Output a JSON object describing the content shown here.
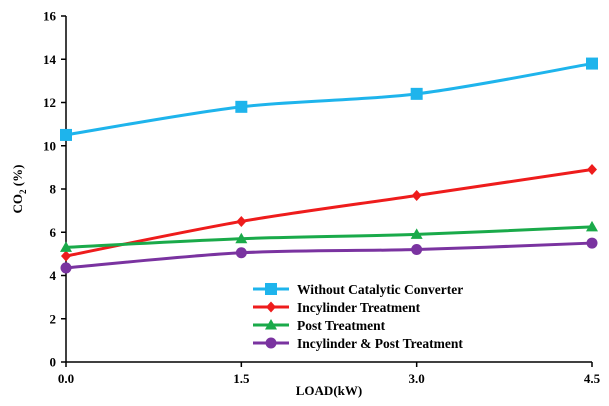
{
  "chart_data": {
    "type": "line",
    "xlabel": "LOAD(kW)",
    "ylabel": "CO",
    "ylabel_sub": "2",
    "ylabel_suffix": " (%)",
    "x": [
      0.0,
      1.5,
      3.0,
      4.5
    ],
    "x_tick_labels": [
      "0.0",
      "1.5",
      "3.0",
      "4.5"
    ],
    "xlim": [
      0,
      4.5
    ],
    "ylim": [
      0,
      16
    ],
    "y_ticks": [
      0,
      2,
      4,
      6,
      8,
      10,
      12,
      14,
      16
    ],
    "grid": false,
    "legend_position": "bottom-right",
    "series": [
      {
        "name": "Without Catalytic Converter",
        "color": "#1EB4EC",
        "marker": "square",
        "values": [
          10.5,
          11.8,
          12.4,
          13.8
        ]
      },
      {
        "name": "Incylinder Treatment",
        "color": "#EE1C1C",
        "marker": "diamond",
        "values": [
          4.9,
          6.5,
          7.7,
          8.9
        ]
      },
      {
        "name": "Post Treatment",
        "color": "#1AAA4A",
        "marker": "triangle",
        "values": [
          5.3,
          5.7,
          5.9,
          6.25
        ]
      },
      {
        "name": "Incylinder & Post Treatment",
        "color": "#7A33A0",
        "marker": "circle",
        "values": [
          4.35,
          5.05,
          5.2,
          5.5
        ]
      }
    ]
  }
}
